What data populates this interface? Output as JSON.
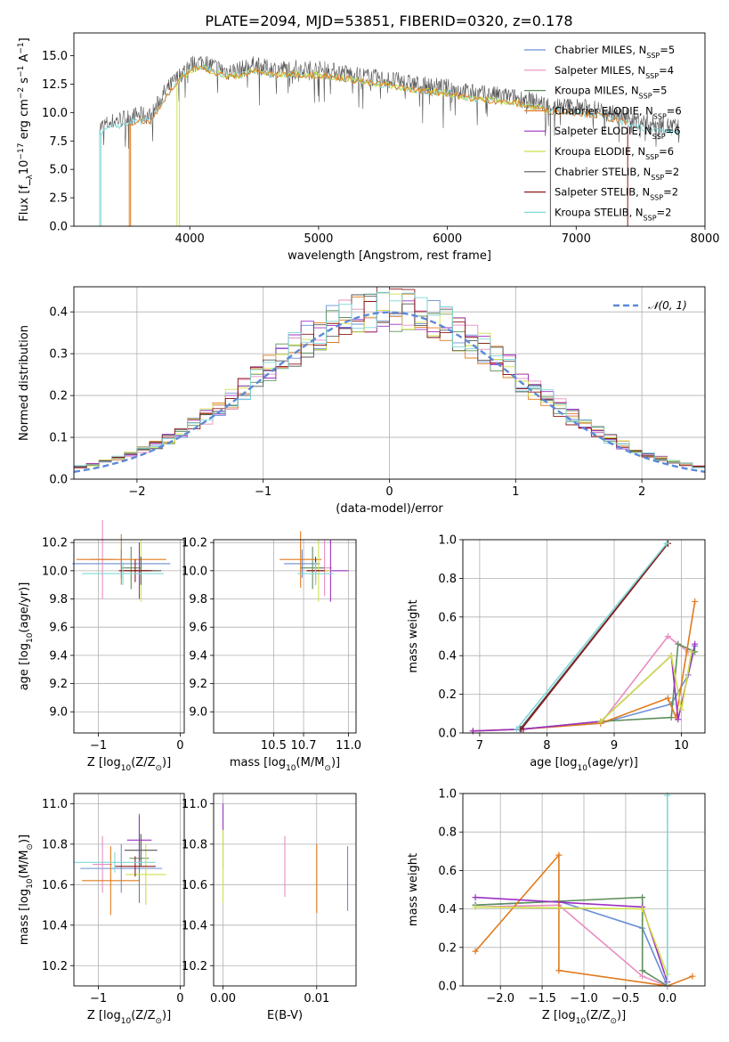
{
  "figure": {
    "title": "PLATE=2094, MJD=53851, FIBERID=0320, z=0.178"
  },
  "colors": {
    "Chabrier MILES": "#6b8fd6",
    "Salpeter MILES": "#e88dc1",
    "Kroupa MILES": "#5c8f5c",
    "Chabrier ELODIE": "#e07b1e",
    "Salpeter ELODIE": "#9b30c4",
    "Kroupa ELODIE": "#cfe04a",
    "Chabrier STELIB": "#555555",
    "Salpeter STELIB": "#8b1a1a",
    "Kroupa STELIB": "#7fd8d8",
    "normal": "#5b8ad8",
    "grid": "#b0b0b0"
  },
  "chart_data": [
    {
      "id": "spectrum",
      "type": "line",
      "xlabel": "wavelength [Angstrom, rest frame]",
      "ylabel": "Flux [f_λ10^-17 erg cm^-2 s^-1 A^-1]",
      "xlim": [
        3100,
        8000
      ],
      "ylim": [
        0,
        17
      ],
      "xticks": [
        4000,
        5000,
        6000,
        7000,
        8000
      ],
      "yticks": [
        0.0,
        2.5,
        5.0,
        7.5,
        10.0,
        12.5,
        15.0
      ],
      "grid": false,
      "legend_position": "top-right",
      "legend": [
        {
          "label": "Chabrier MILES, N",
          "sub": "SSP",
          "suffix": "=5",
          "color_key": "Chabrier MILES"
        },
        {
          "label": "Salpeter MILES, N",
          "sub": "SSP",
          "suffix": "=4",
          "color_key": "Salpeter MILES"
        },
        {
          "label": "Kroupa MILES, N",
          "sub": "SSP",
          "suffix": "=5",
          "color_key": "Kroupa MILES"
        },
        {
          "label": "Chabrier ELODIE, N",
          "sub": "SSP",
          "suffix": "=6",
          "color_key": "Chabrier ELODIE"
        },
        {
          "label": "Salpeter ELODIE, N",
          "sub": "SSP",
          "suffix": "=6",
          "color_key": "Salpeter ELODIE"
        },
        {
          "label": "Kroupa ELODIE, N",
          "sub": "SSP",
          "suffix": "=6",
          "color_key": "Kroupa ELODIE"
        },
        {
          "label": "Chabrier STELIB, N",
          "sub": "SSP",
          "suffix": "=2",
          "color_key": "Chabrier STELIB"
        },
        {
          "label": "Salpeter STELIB, N",
          "sub": "SSP",
          "suffix": "=2",
          "color_key": "Salpeter STELIB"
        },
        {
          "label": "Kroupa STELIB, N",
          "sub": "SSP",
          "suffix": "=2",
          "color_key": "Kroupa STELIB"
        }
      ],
      "observed_envelope": {
        "color_key": "Chabrier STELIB",
        "x": [
          3300,
          3400,
          3500,
          3600,
          3700,
          3800,
          3900,
          4000,
          4100,
          4200,
          4300,
          4400,
          4500,
          4600,
          4700,
          4800,
          4900,
          5000,
          5200,
          5400,
          5600,
          5800,
          6000,
          6200,
          6400,
          6600,
          6800,
          7000,
          7200,
          7400,
          7600,
          7800
        ],
        "y": [
          9.5,
          10.0,
          10.3,
          10.6,
          10.5,
          12.5,
          13.8,
          15.0,
          15.3,
          14.8,
          14.4,
          14.6,
          15.0,
          14.7,
          14.6,
          14.7,
          14.6,
          14.6,
          14.3,
          13.9,
          13.6,
          13.2,
          13.0,
          12.5,
          12.3,
          12.0,
          11.4,
          11.3,
          11.0,
          10.3,
          9.8,
          9.5
        ]
      },
      "model_spectra": [
        {
          "name": "Kroupa STELIB",
          "start": 3300,
          "end": 7800,
          "color_key": "Kroupa STELIB"
        },
        {
          "name": "Kroupa ELODIE",
          "start": 3900,
          "end": 6800,
          "color_key": "Kroupa ELODIE"
        },
        {
          "name": "Chabrier ELODIE",
          "start": 3530,
          "end": 7400,
          "color_key": "Chabrier ELODIE"
        }
      ]
    },
    {
      "id": "residuals",
      "type": "area",
      "xlabel": "(data-model)/error",
      "ylabel": "Normed distribution",
      "xlim": [
        -2.5,
        2.5
      ],
      "ylim": [
        0,
        0.46
      ],
      "xticks": [
        -2,
        -1,
        0,
        1,
        2
      ],
      "yticks": [
        0.0,
        0.1,
        0.2,
        0.3,
        0.4
      ],
      "grid": true,
      "legend_position": "top-right",
      "normal_label": "N(0,1)",
      "bin_width": 0.1,
      "series_color_keys": [
        "Chabrier MILES",
        "Salpeter MILES",
        "Kroupa MILES",
        "Chabrier ELODIE",
        "Salpeter ELODIE",
        "Kroupa ELODIE",
        "Chabrier STELIB",
        "Salpeter STELIB",
        "Kroupa STELIB"
      ]
    },
    {
      "id": "age-vs-Z",
      "type": "scatter",
      "xlabel": "Z [log10(Z/Z_sun)]",
      "ylabel": "age [log10(age/yr)]",
      "xlim": [
        -1.3,
        0.05
      ],
      "ylim": [
        8.85,
        10.22
      ],
      "xticks": [
        -1,
        0
      ],
      "yticks": [
        9.0,
        9.2,
        9.4,
        9.6,
        9.8,
        10.0,
        10.2
      ],
      "grid": true,
      "points": [
        {
          "x": -0.72,
          "y": 10.05,
          "xerr": 0.6,
          "yerr": 0.1,
          "color_key": "Chabrier MILES"
        },
        {
          "x": -0.95,
          "y": 10.08,
          "xerr": 0.15,
          "yerr": 0.28,
          "color_key": "Salpeter MILES"
        },
        {
          "x": -0.6,
          "y": 10.02,
          "xerr": 0.12,
          "yerr": 0.15,
          "color_key": "Kroupa MILES"
        },
        {
          "x": -0.72,
          "y": 10.08,
          "xerr": 0.55,
          "yerr": 0.18,
          "color_key": "Chabrier ELODIE"
        },
        {
          "x": -0.5,
          "y": 10.0,
          "xerr": 0.1,
          "yerr": 0.2,
          "color_key": "Salpeter ELODIE"
        },
        {
          "x": -0.48,
          "y": 10.0,
          "xerr": 0.18,
          "yerr": 0.22,
          "color_key": "Kroupa ELODIE"
        },
        {
          "x": -0.48,
          "y": 10.0,
          "xerr": 0.25,
          "yerr": 0.1,
          "color_key": "Chabrier STELIB"
        },
        {
          "x": -0.55,
          "y": 10.0,
          "xerr": 0.2,
          "yerr": 0.08,
          "color_key": "Salpeter STELIB"
        },
        {
          "x": -0.7,
          "y": 9.98,
          "xerr": 0.5,
          "yerr": 0.08,
          "color_key": "Kroupa STELIB"
        }
      ]
    },
    {
      "id": "age-vs-mass",
      "type": "scatter",
      "xlabel": "mass [log10(M/M_sun)]",
      "ylabel": "",
      "xlim": [
        10.1,
        11.05
      ],
      "ylim": [
        8.85,
        10.22
      ],
      "xticks": [
        10.5,
        10.7,
        11.0
      ],
      "yticks": [
        9.0,
        9.2,
        9.4,
        9.6,
        9.8,
        10.0,
        10.2
      ],
      "grid": true,
      "points": [
        {
          "x": 10.69,
          "y": 10.05,
          "xerr": 0.12,
          "yerr": 0.1,
          "color_key": "Chabrier MILES"
        },
        {
          "x": 10.84,
          "y": 10.02,
          "xerr": 0.05,
          "yerr": 0.2,
          "color_key": "Salpeter MILES"
        },
        {
          "x": 10.76,
          "y": 10.02,
          "xerr": 0.08,
          "yerr": 0.15,
          "color_key": "Kroupa MILES"
        },
        {
          "x": 10.68,
          "y": 10.08,
          "xerr": 0.14,
          "yerr": 0.2,
          "color_key": "Chabrier ELODIE"
        },
        {
          "x": 10.88,
          "y": 10.0,
          "xerr": 0.12,
          "yerr": 0.22,
          "color_key": "Salpeter ELODIE"
        },
        {
          "x": 10.8,
          "y": 10.0,
          "xerr": 0.08,
          "yerr": 0.22,
          "color_key": "Kroupa ELODIE"
        },
        {
          "x": 10.78,
          "y": 10.0,
          "xerr": 0.06,
          "yerr": 0.1,
          "color_key": "Chabrier STELIB"
        },
        {
          "x": 10.78,
          "y": 10.0,
          "xerr": 0.06,
          "yerr": 0.08,
          "color_key": "Salpeter STELIB"
        },
        {
          "x": 10.78,
          "y": 9.98,
          "xerr": 0.12,
          "yerr": 0.08,
          "color_key": "Kroupa STELIB"
        }
      ]
    },
    {
      "id": "weight-vs-age",
      "type": "line",
      "xlabel": "age [log10(age/yr)]",
      "ylabel": "mass weight",
      "xlim": [
        6.75,
        10.35
      ],
      "ylim": [
        0,
        1
      ],
      "xticks": [
        7,
        8,
        9,
        10
      ],
      "yticks": [
        0.0,
        0.2,
        0.4,
        0.6,
        0.8,
        1.0
      ],
      "grid": true,
      "series": [
        {
          "color_key": "Chabrier MILES",
          "x": [
            7.6,
            8.8,
            9.85,
            10.1,
            10.2
          ],
          "y": [
            0.02,
            0.05,
            0.15,
            0.3,
            0.45
          ]
        },
        {
          "color_key": "Salpeter MILES",
          "x": [
            8.8,
            9.8,
            10.1
          ],
          "y": [
            0.05,
            0.5,
            0.42
          ]
        },
        {
          "color_key": "Kroupa MILES",
          "x": [
            7.65,
            8.8,
            9.85,
            9.95,
            10.2
          ],
          "y": [
            0.02,
            0.06,
            0.08,
            0.46,
            0.42
          ]
        },
        {
          "color_key": "Chabrier ELODIE",
          "x": [
            6.9,
            7.65,
            8.8,
            9.8,
            9.92,
            10.2
          ],
          "y": [
            0.01,
            0.02,
            0.05,
            0.18,
            0.08,
            0.68
          ]
        },
        {
          "color_key": "Salpeter ELODIE",
          "x": [
            6.9,
            7.65,
            8.8,
            9.85,
            9.95,
            10.2
          ],
          "y": [
            0.01,
            0.02,
            0.06,
            0.4,
            0.07,
            0.46
          ]
        },
        {
          "color_key": "Kroupa ELODIE",
          "x": [
            8.8,
            9.85,
            10.0,
            10.15
          ],
          "y": [
            0.06,
            0.4,
            0.12,
            0.42
          ]
        },
        {
          "color_key": "Chabrier STELIB",
          "x": [
            7.6,
            9.8
          ],
          "y": [
            0.02,
            0.98
          ]
        },
        {
          "color_key": "Salpeter STELIB",
          "x": [
            7.62,
            9.8
          ],
          "y": [
            0.02,
            0.98
          ]
        },
        {
          "color_key": "Kroupa STELIB",
          "x": [
            7.55,
            9.78
          ],
          "y": [
            0.02,
            0.98
          ]
        }
      ]
    },
    {
      "id": "mass-vs-Z",
      "type": "scatter",
      "xlabel": "Z [log10(Z/Z_sun)]",
      "ylabel": "mass [log10(M/M_sun)]",
      "xlim": [
        -1.3,
        0.05
      ],
      "ylim": [
        10.1,
        11.05
      ],
      "xticks": [
        -1,
        0
      ],
      "yticks": [
        10.2,
        10.4,
        10.6,
        10.8,
        11.0
      ],
      "grid": true,
      "points": [
        {
          "x": -0.72,
          "y": 10.68,
          "xerr": 0.5,
          "yerr": 0.12,
          "color_key": "Chabrier MILES"
        },
        {
          "x": -0.95,
          "y": 10.7,
          "xerr": 0.12,
          "yerr": 0.14,
          "color_key": "Salpeter MILES"
        },
        {
          "x": -0.5,
          "y": 10.73,
          "xerr": 0.12,
          "yerr": 0.22,
          "color_key": "Kroupa MILES"
        },
        {
          "x": -0.85,
          "y": 10.62,
          "xerr": 0.35,
          "yerr": 0.17,
          "color_key": "Chabrier ELODIE"
        },
        {
          "x": -0.5,
          "y": 10.82,
          "xerr": 0.15,
          "yerr": 0.12,
          "color_key": "Salpeter ELODIE"
        },
        {
          "x": -0.42,
          "y": 10.65,
          "xerr": 0.25,
          "yerr": 0.15,
          "color_key": "Kroupa ELODIE"
        },
        {
          "x": -0.48,
          "y": 10.77,
          "xerr": 0.2,
          "yerr": 0.08,
          "color_key": "Chabrier STELIB"
        },
        {
          "x": -0.55,
          "y": 10.69,
          "xerr": 0.25,
          "yerr": 0.05,
          "color_key": "Salpeter STELIB"
        },
        {
          "x": -0.8,
          "y": 10.71,
          "xerr": 0.5,
          "yerr": 0.05,
          "color_key": "Kroupa STELIB"
        }
      ]
    },
    {
      "id": "mass-vs-ebv",
      "type": "scatter",
      "xlabel": "E(B-V)",
      "ylabel": "",
      "xlim": [
        -0.001,
        0.0142
      ],
      "ylim": [
        10.1,
        11.05
      ],
      "xticks": [
        0.0,
        0.01
      ],
      "yticks": [
        10.2,
        10.4,
        10.6,
        10.8,
        11.0
      ],
      "grid": true,
      "points": [
        {
          "x": 0.0133,
          "y": 10.63,
          "yerr": 0.16,
          "color_key": "Chabrier MILES"
        },
        {
          "x": 0.0066,
          "y": 10.69,
          "yerr": 0.15,
          "color_key": "Salpeter MILES"
        },
        {
          "x": 0.0,
          "y": 10.84,
          "yerr": 0.16,
          "color_key": "Salpeter ELODIE"
        },
        {
          "x": 0.0,
          "y": 10.69,
          "yerr": 0.18,
          "color_key": "Kroupa ELODIE"
        },
        {
          "x": 0.01,
          "y": 10.63,
          "yerr": 0.17,
          "color_key": "Chabrier ELODIE"
        }
      ]
    },
    {
      "id": "weight-vs-Z",
      "type": "line",
      "xlabel": "Z [log10(Z/Z_sun)]",
      "ylabel": "mass weight",
      "xlim": [
        -2.45,
        0.45
      ],
      "ylim": [
        0,
        1
      ],
      "xticks": [
        -2.0,
        -1.5,
        -1.0,
        -0.5,
        0.0
      ],
      "yticks": [
        0.0,
        0.2,
        0.4,
        0.6,
        0.8,
        1.0
      ],
      "grid": true,
      "series": [
        {
          "color_key": "Chabrier MILES",
          "x": [
            -2.3,
            -1.3,
            -0.3,
            0.0
          ],
          "y": [
            0.42,
            0.44,
            0.3,
            0.0
          ]
        },
        {
          "color_key": "Salpeter MILES",
          "x": [
            -2.3,
            -1.3,
            -0.3,
            0.0
          ],
          "y": [
            0.41,
            0.42,
            0.05,
            0.0
          ]
        },
        {
          "color_key": "Kroupa MILES",
          "x": [
            -2.3,
            -0.3,
            -0.3,
            0.0
          ],
          "y": [
            0.42,
            0.46,
            0.08,
            0.0
          ]
        },
        {
          "color_key": "Chabrier ELODIE",
          "x": [
            -2.3,
            -1.3,
            -1.3,
            0.0,
            0.3
          ],
          "y": [
            0.18,
            0.68,
            0.08,
            0.0,
            0.05
          ]
        },
        {
          "color_key": "Salpeter ELODIE",
          "x": [
            -2.3,
            -0.3,
            0.0
          ],
          "y": [
            0.46,
            0.41,
            0.02
          ]
        },
        {
          "color_key": "Kroupa ELODIE",
          "x": [
            -2.3,
            -0.3,
            0.0
          ],
          "y": [
            0.41,
            0.4,
            0.06
          ]
        },
        {
          "color_key": "Kroupa STELIB",
          "x": [
            0.0,
            0.0
          ],
          "y": [
            0.0,
            0.99
          ]
        }
      ]
    }
  ]
}
